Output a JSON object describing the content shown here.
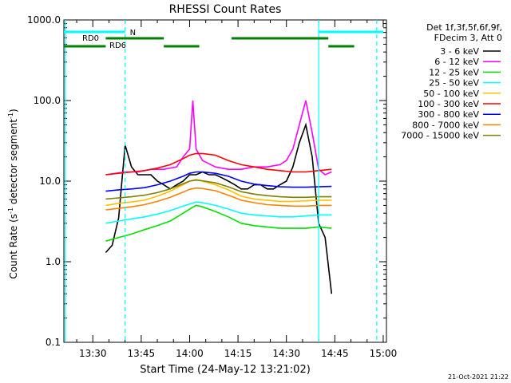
{
  "chart_data": {
    "type": "line",
    "title": "RHESSI Count Rates",
    "xlabel": "Start Time (24-May-12 13:21:02)",
    "ylabel_main": "Count Rate (s",
    "ylabel_sup": "-1",
    "ylabel_mid": " detector segment",
    "ylabel_sup2": "-1",
    "ylabel_end": ")",
    "y_scale": "log",
    "ylim": [
      0.1,
      1000
    ],
    "xlim": [
      "13:21:02",
      "15:01:00"
    ],
    "x_ticks": [
      "13:30",
      "13:45",
      "14:00",
      "14:15",
      "14:30",
      "14:45",
      "15:00"
    ],
    "y_ticks": [
      "0.1",
      "1.0",
      "10.0",
      "100.0",
      "1000.0"
    ],
    "legend_placement": "right",
    "legend_header": [
      "Det 1f,3f,5f,6f,9f,",
      "FDecim 3, Att 0"
    ],
    "series": [
      {
        "name": "3 - 6 keV",
        "color": "#000000",
        "x": [
          "13:34",
          "13:36",
          "13:38",
          "13:40",
          "13:42",
          "13:44",
          "13:46",
          "13:48",
          "13:50",
          "13:52",
          "13:54",
          "13:56",
          "13:58",
          "14:00",
          "14:02",
          "14:04",
          "14:06",
          "14:08",
          "14:10",
          "14:12",
          "14:14",
          "14:16",
          "14:18",
          "14:20",
          "14:22",
          "14:24",
          "14:26",
          "14:28",
          "14:30",
          "14:32",
          "14:34",
          "14:36",
          "14:38",
          "14:40",
          "14:42",
          "14:44"
        ],
        "values": [
          1.3,
          1.6,
          3.5,
          28,
          15,
          12,
          12,
          12,
          10,
          9,
          8,
          9,
          10,
          12,
          12,
          13,
          12,
          12,
          11,
          10,
          9,
          8,
          8,
          9,
          9,
          8,
          8,
          9,
          10,
          15,
          30,
          50,
          20,
          3,
          2,
          0.4
        ]
      },
      {
        "name": "6 - 12 keV",
        "color": "#ff00ff",
        "x": [
          "13:34",
          "13:40",
          "13:44",
          "13:48",
          "13:52",
          "13:56",
          "13:58",
          "14:00",
          "14:01",
          "14:02",
          "14:04",
          "14:08",
          "14:12",
          "14:16",
          "14:20",
          "14:24",
          "14:28",
          "14:30",
          "14:32",
          "14:34",
          "14:36",
          "14:38",
          "14:40",
          "14:42",
          "14:44"
        ],
        "values": [
          12,
          13,
          13,
          14,
          14,
          15,
          20,
          25,
          100,
          25,
          18,
          15,
          14,
          14,
          15,
          15,
          16,
          18,
          25,
          50,
          100,
          40,
          14,
          12,
          13
        ]
      },
      {
        "name": "12 - 25 keV",
        "color": "#00e000",
        "x": [
          "13:34",
          "13:38",
          "13:42",
          "13:46",
          "13:50",
          "13:54",
          "13:58",
          "14:00",
          "14:02",
          "14:04",
          "14:08",
          "14:12",
          "14:16",
          "14:20",
          "14:24",
          "14:28",
          "14:32",
          "14:36",
          "14:40",
          "14:44"
        ],
        "values": [
          1.8,
          2.0,
          2.2,
          2.5,
          2.8,
          3.2,
          4.0,
          4.5,
          5.0,
          4.8,
          4.2,
          3.6,
          3.0,
          2.8,
          2.7,
          2.6,
          2.6,
          2.6,
          2.7,
          2.6
        ]
      },
      {
        "name": "25 - 50 keV",
        "color": "#00ffff",
        "x": [
          "13:34",
          "13:38",
          "13:42",
          "13:46",
          "13:50",
          "13:54",
          "13:58",
          "14:00",
          "14:02",
          "14:04",
          "14:08",
          "14:12",
          "14:16",
          "14:20",
          "14:24",
          "14:28",
          "14:32",
          "14:36",
          "14:40",
          "14:44"
        ],
        "values": [
          3.0,
          3.2,
          3.4,
          3.6,
          3.9,
          4.3,
          4.9,
          5.2,
          5.5,
          5.4,
          5.0,
          4.5,
          4.0,
          3.8,
          3.7,
          3.6,
          3.6,
          3.7,
          3.8,
          3.8
        ]
      },
      {
        "name": "50 - 100 keV",
        "color": "#ffc000",
        "x": [
          "13:34",
          "13:38",
          "13:42",
          "13:46",
          "13:50",
          "13:54",
          "13:58",
          "14:00",
          "14:02",
          "14:04",
          "14:08",
          "14:12",
          "14:16",
          "14:20",
          "14:24",
          "14:28",
          "14:32",
          "14:36",
          "14:40",
          "14:44"
        ],
        "values": [
          5.0,
          5.3,
          5.5,
          5.8,
          6.5,
          7.5,
          9.0,
          10,
          10.5,
          10,
          9.0,
          7.8,
          6.5,
          6.0,
          5.8,
          5.6,
          5.6,
          5.7,
          5.8,
          5.8
        ]
      },
      {
        "name": "100 - 300 keV",
        "color": "#ff0000",
        "x": [
          "13:34",
          "13:38",
          "13:42",
          "13:46",
          "13:50",
          "13:54",
          "13:58",
          "14:00",
          "14:02",
          "14:04",
          "14:08",
          "14:12",
          "14:16",
          "14:20",
          "14:24",
          "14:28",
          "14:32",
          "14:36",
          "14:40",
          "14:44"
        ],
        "values": [
          12,
          12.5,
          13,
          13.5,
          14.5,
          16,
          19,
          21,
          22,
          22,
          21,
          18,
          16,
          15,
          14,
          13.5,
          13,
          13,
          13.5,
          14
        ]
      },
      {
        "name": "300 - 800 keV",
        "color": "#0000ff",
        "x": [
          "13:34",
          "13:38",
          "13:42",
          "13:46",
          "13:50",
          "13:54",
          "13:58",
          "14:00",
          "14:02",
          "14:04",
          "14:08",
          "14:12",
          "14:16",
          "14:20",
          "14:24",
          "14:28",
          "14:32",
          "14:36",
          "14:40",
          "14:44"
        ],
        "values": [
          7.5,
          7.8,
          8.0,
          8.3,
          9.0,
          10,
          11.5,
          12.5,
          13,
          13,
          12.5,
          11.5,
          10,
          9.2,
          8.8,
          8.5,
          8.4,
          8.4,
          8.5,
          8.6
        ]
      },
      {
        "name": "800 - 7000 keV",
        "color": "#ff8000",
        "x": [
          "13:34",
          "13:38",
          "13:42",
          "13:46",
          "13:50",
          "13:54",
          "13:58",
          "14:00",
          "14:02",
          "14:04",
          "14:08",
          "14:12",
          "14:16",
          "14:20",
          "14:24",
          "14:28",
          "14:32",
          "14:36",
          "14:40",
          "14:44"
        ],
        "values": [
          4.4,
          4.6,
          4.8,
          5.1,
          5.6,
          6.3,
          7.3,
          7.9,
          8.2,
          8.1,
          7.6,
          6.7,
          5.8,
          5.4,
          5.1,
          5.0,
          4.9,
          4.9,
          5.0,
          5.0
        ]
      },
      {
        "name": "7000 - 15000 keV",
        "color": "#808000",
        "x": [
          "13:34",
          "13:38",
          "13:42",
          "13:46",
          "13:50",
          "13:54",
          "13:58",
          "14:00",
          "14:02",
          "14:04",
          "14:08",
          "14:12",
          "14:16",
          "14:20",
          "14:24",
          "14:28",
          "14:32",
          "14:36",
          "14:40",
          "14:44"
        ],
        "values": [
          6.0,
          6.2,
          6.4,
          6.7,
          7.2,
          8.0,
          9.3,
          10,
          10.3,
          10.1,
          9.5,
          8.5,
          7.4,
          6.9,
          6.6,
          6.4,
          6.3,
          6.3,
          6.4,
          6.4
        ]
      }
    ],
    "annotations": {
      "N_label": "N",
      "RD0_label": "RD0",
      "RD6_label": "RD6",
      "timestamp": "21-Oct-2021 21:22"
    },
    "markers": {
      "N_segments": [
        [
          "13:21:02",
          "13:40"
        ],
        [
          "14:40",
          "15:00"
        ]
      ],
      "RD0_segments": [
        [
          "13:34",
          "13:52"
        ],
        [
          "14:13",
          "14:43"
        ]
      ],
      "RD6_segments": [
        [
          "13:21:02",
          "13:34"
        ],
        [
          "13:52",
          "14:03"
        ],
        [
          "14:43",
          "14:51"
        ]
      ],
      "vlines_cyan_solid": [
        "13:21:30",
        "14:40"
      ],
      "vlines_cyan_dashed": [
        "13:40",
        "14:58"
      ]
    }
  }
}
